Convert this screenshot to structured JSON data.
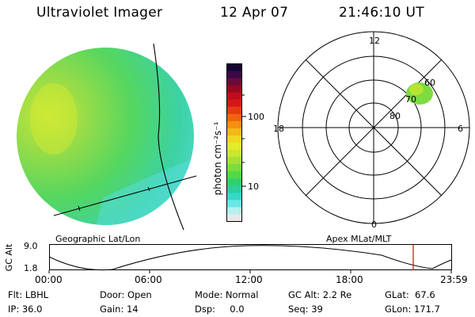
{
  "header": {
    "title": "Ultraviolet Imager",
    "date": "12 Apr 07",
    "time": "21:46:10 UT"
  },
  "image_panel": {
    "caption": "Geographic Lat/Lon"
  },
  "colorbar": {
    "unit_label": "photon cm⁻²s⁻¹",
    "ticks": [
      "100",
      "10"
    ],
    "colors": [
      "#e8e8e8",
      "#b4f0f0",
      "#6ce6e6",
      "#34d8c8",
      "#2ccf9c",
      "#30d070",
      "#54d848",
      "#7cdc40",
      "#a4e038",
      "#c8e82c",
      "#e4ec28",
      "#f0d820",
      "#f4b818",
      "#f49010",
      "#f06410",
      "#e43c10",
      "#d41818",
      "#c00c1c",
      "#980820",
      "#6a0a3a",
      "#3a0848",
      "#120630"
    ]
  },
  "polar_panel": {
    "caption": "Apex MLat/MLT",
    "mlt_labels": {
      "top": "12",
      "left": "18",
      "right": "6",
      "bottom": "0"
    },
    "lat_labels": [
      "80",
      "70",
      "60"
    ]
  },
  "timeline": {
    "axis_label": "GC Alt",
    "y_ticks": [
      "9.0",
      "1.8"
    ],
    "x_ticks": [
      "00:00",
      "06:00",
      "12:00",
      "18:00",
      "23:59"
    ],
    "marker_time": "21:46"
  },
  "footer": {
    "filter": "Flt: LBHL",
    "door": "Door: Open",
    "mode": "Mode: Normal",
    "gc_alt": "GC Alt: 2.2 Re",
    "glat": "GLat:  67.6",
    "ip": "IP: 36.0",
    "gain": "Gain: 14",
    "dsp": "Dsp:     0.0",
    "seq": "Seq: 39",
    "glon": "GLon: 171.7"
  }
}
